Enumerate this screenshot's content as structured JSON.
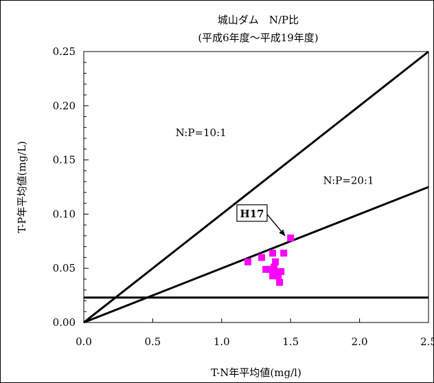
{
  "chart_data": {
    "type": "scatter",
    "title": "城山ダム　N/P比",
    "subtitle": "(平成6年度～平成19年度)",
    "xlabel": "T-N年平均値(mg/l)",
    "ylabel": "T-P年平均値(mg/L)",
    "xlim": [
      0.0,
      2.5
    ],
    "ylim": [
      0.0,
      0.25
    ],
    "xticks": [
      "0.0",
      "0.5",
      "1.0",
      "1.5",
      "2.0",
      "2.5"
    ],
    "yticks": [
      "0.00",
      "0.05",
      "0.10",
      "0.15",
      "0.20",
      "0.25"
    ],
    "grid": false,
    "points": [
      {
        "x": 1.19,
        "y": 0.056
      },
      {
        "x": 1.29,
        "y": 0.06
      },
      {
        "x": 1.32,
        "y": 0.049
      },
      {
        "x": 1.37,
        "y": 0.064
      },
      {
        "x": 1.38,
        "y": 0.051
      },
      {
        "x": 1.39,
        "y": 0.056
      },
      {
        "x": 1.4,
        "y": 0.046
      },
      {
        "x": 1.37,
        "y": 0.043
      },
      {
        "x": 1.41,
        "y": 0.043
      },
      {
        "x": 1.43,
        "y": 0.047
      },
      {
        "x": 1.42,
        "y": 0.037
      },
      {
        "x": 1.45,
        "y": 0.064
      },
      {
        "x": 1.35,
        "y": 0.049
      },
      {
        "x": 1.5,
        "y": 0.078
      }
    ],
    "ratio_lines": [
      {
        "label": "N:P=10:1",
        "slope": 0.1
      },
      {
        "label": "N:P=20:1",
        "slope": 0.05
      }
    ],
    "horizontal_line": {
      "y": 0.023
    },
    "callout": {
      "label": "H17",
      "x": 1.5,
      "y": 0.078
    },
    "marker_color": "#ff00ff"
  }
}
